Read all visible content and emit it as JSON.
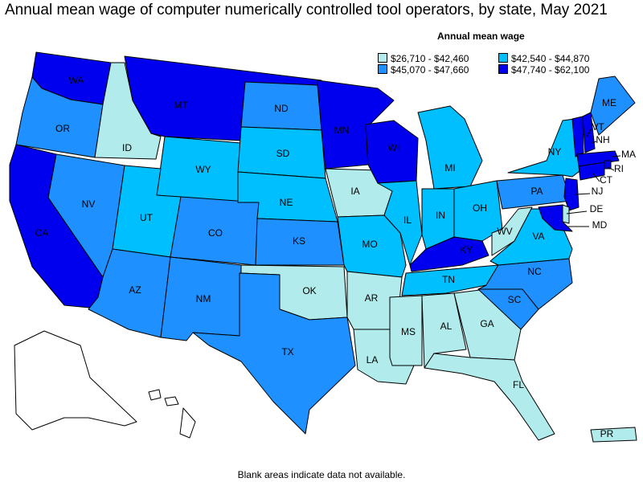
{
  "title": "Annual mean wage of computer numerically controlled tool operators, by state, May 2021",
  "legend": {
    "title": "Annual mean wage",
    "items": [
      {
        "label": "$26,710 - $42,460",
        "color": "#b2ebeb"
      },
      {
        "label": "$42,540 - $44,870",
        "color": "#00bfff"
      },
      {
        "label": "$45,070 - $47,660",
        "color": "#1e90ff"
      },
      {
        "label": "$47,740 - $62,100",
        "color": "#0000ee"
      }
    ]
  },
  "footnote": "Blank areas indicate data not available.",
  "chart_data": {
    "type": "choropleth",
    "legend_placement": "top-right",
    "states": [
      {
        "abbr": "WA",
        "bin": 3
      },
      {
        "abbr": "OR",
        "bin": 2
      },
      {
        "abbr": "CA",
        "bin": 3
      },
      {
        "abbr": "ID",
        "bin": 0
      },
      {
        "abbr": "NV",
        "bin": 2
      },
      {
        "abbr": "MT",
        "bin": 3
      },
      {
        "abbr": "WY",
        "bin": 1
      },
      {
        "abbr": "UT",
        "bin": 1
      },
      {
        "abbr": "AZ",
        "bin": 2
      },
      {
        "abbr": "CO",
        "bin": 2
      },
      {
        "abbr": "NM",
        "bin": 2
      },
      {
        "abbr": "ND",
        "bin": 2
      },
      {
        "abbr": "SD",
        "bin": 1
      },
      {
        "abbr": "NE",
        "bin": 1
      },
      {
        "abbr": "KS",
        "bin": 2
      },
      {
        "abbr": "OK",
        "bin": 0
      },
      {
        "abbr": "TX",
        "bin": 2
      },
      {
        "abbr": "MN",
        "bin": 3
      },
      {
        "abbr": "IA",
        "bin": 0
      },
      {
        "abbr": "MO",
        "bin": 1
      },
      {
        "abbr": "AR",
        "bin": 0
      },
      {
        "abbr": "LA",
        "bin": 0
      },
      {
        "abbr": "WI",
        "bin": 3
      },
      {
        "abbr": "IL",
        "bin": 1
      },
      {
        "abbr": "MI",
        "bin": 1
      },
      {
        "abbr": "IN",
        "bin": 1
      },
      {
        "abbr": "OH",
        "bin": 1
      },
      {
        "abbr": "KY",
        "bin": 3
      },
      {
        "abbr": "TN",
        "bin": 1
      },
      {
        "abbr": "MS",
        "bin": 0
      },
      {
        "abbr": "AL",
        "bin": 0
      },
      {
        "abbr": "GA",
        "bin": 0
      },
      {
        "abbr": "FL",
        "bin": 0
      },
      {
        "abbr": "SC",
        "bin": 2
      },
      {
        "abbr": "NC",
        "bin": 2
      },
      {
        "abbr": "VA",
        "bin": 1
      },
      {
        "abbr": "WV",
        "bin": 0
      },
      {
        "abbr": "PA",
        "bin": 2
      },
      {
        "abbr": "NY",
        "bin": 1
      },
      {
        "abbr": "VT",
        "bin": 3
      },
      {
        "abbr": "NH",
        "bin": 3
      },
      {
        "abbr": "ME",
        "bin": 2
      },
      {
        "abbr": "MA",
        "bin": 3
      },
      {
        "abbr": "RI",
        "bin": 3
      },
      {
        "abbr": "CT",
        "bin": 3
      },
      {
        "abbr": "NJ",
        "bin": 3
      },
      {
        "abbr": "DE",
        "bin": 0
      },
      {
        "abbr": "MD",
        "bin": 3
      },
      {
        "abbr": "PR",
        "bin": 0
      },
      {
        "abbr": "AK",
        "bin": null
      },
      {
        "abbr": "HI",
        "bin": null
      }
    ]
  }
}
